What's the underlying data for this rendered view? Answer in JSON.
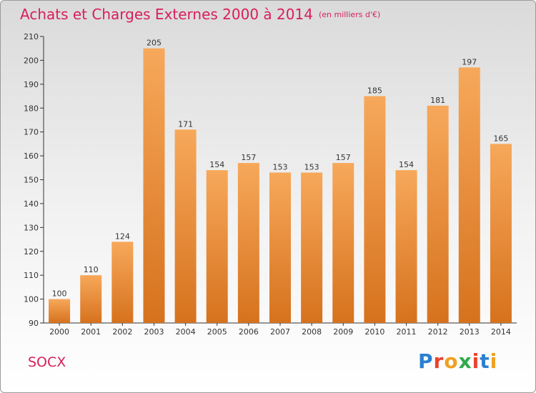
{
  "title": "Achats et Charges Externes 2000 à 2014",
  "unit": "(en milliers d'€)",
  "place": "SOCX",
  "logo_text": "Proxiti",
  "colors": {
    "title": "#d81f5a",
    "bar_top": "#f7a85a",
    "bar_bottom": "#d6721e",
    "axis": "#333333",
    "logo": [
      "#2b7fd0",
      "#e8432f",
      "#f0a020",
      "#2eaa4a",
      "#e8432f",
      "#2b7fd0",
      "#f0a020"
    ]
  },
  "chart_data": {
    "type": "bar",
    "categories": [
      "2000",
      "2001",
      "2002",
      "2003",
      "2004",
      "2005",
      "2006",
      "2007",
      "2008",
      "2009",
      "2010",
      "2011",
      "2012",
      "2013",
      "2014"
    ],
    "values": [
      100,
      110,
      124,
      205,
      171,
      154,
      157,
      153,
      153,
      157,
      185,
      154,
      181,
      197,
      165
    ],
    "ylim": [
      90,
      210
    ],
    "yticks": [
      90,
      100,
      110,
      120,
      130,
      140,
      150,
      160,
      170,
      180,
      190,
      200,
      210
    ],
    "grid": false
  }
}
